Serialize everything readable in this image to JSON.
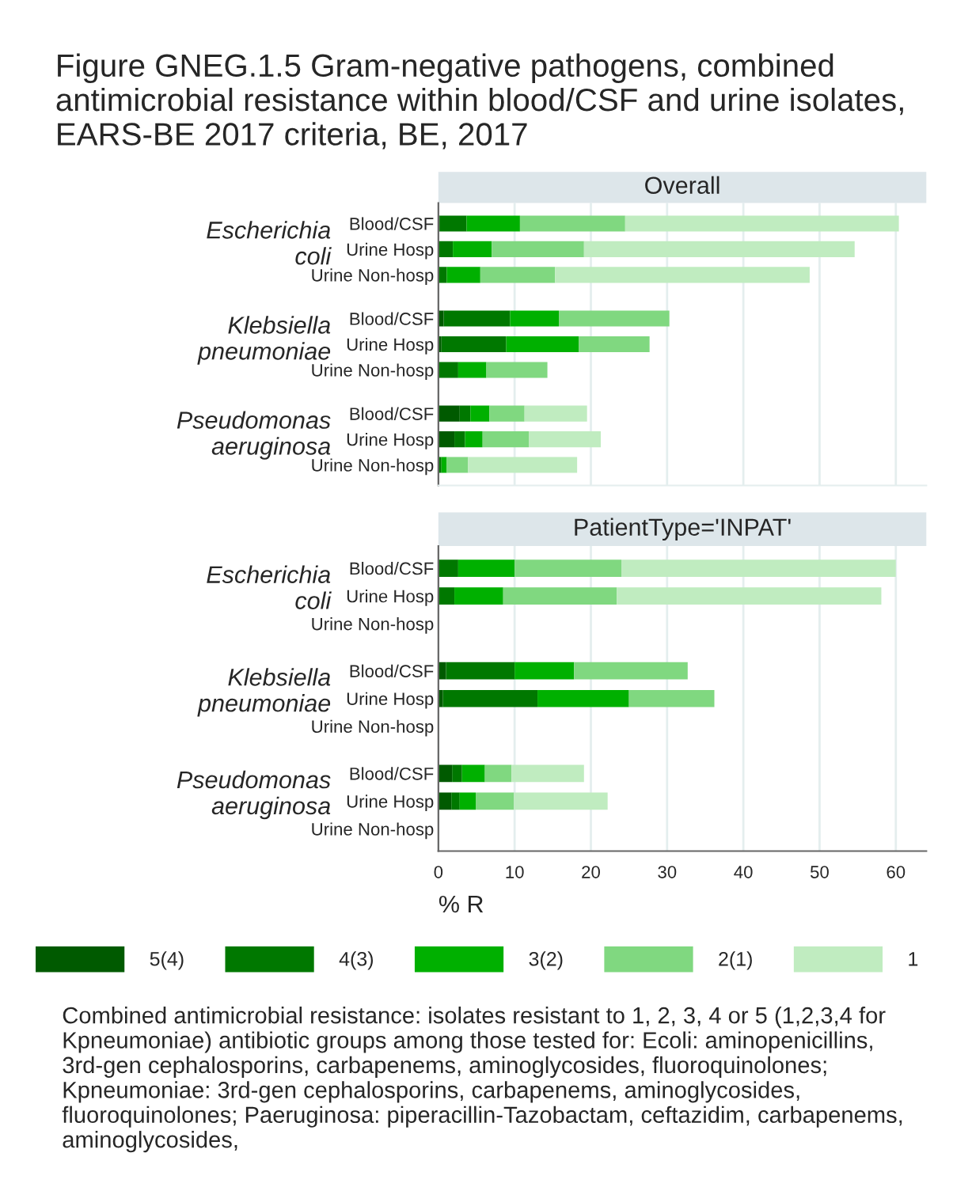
{
  "chart_data": [
    {
      "type": "bar",
      "orientation": "horizontal",
      "stacked": true,
      "title": "Figure GNEG.1.5 Gram-negative pathogens, combined antimicrobial resistance within blood/CSF and urine isolates, EARS-BE 2017 criteria, BE, 2017",
      "subtitle": "Overall",
      "categories": [
        "Blood/CSF",
        "Urine Hosp",
        "Urine Non-hosp",
        "Blood/CSF",
        "Urine Hosp",
        "Urine Non-hosp",
        "Blood/CSF",
        "Urine Hosp",
        "Urine Non-hosp"
      ],
      "annotations": [
        "Escherichia coli",
        "Klebsiella pneumoniae",
        "Pseudomonas aeruginosa"
      ],
      "series": [
        {
          "name": "5(4)",
          "color": "#005a00",
          "values": [
            0.2,
            0,
            0,
            0.7,
            0.4,
            0,
            2.8,
            2.1,
            0
          ]
        },
        {
          "name": "4(3)",
          "color": "#007800",
          "values": [
            3.5,
            1.9,
            1.1,
            8.7,
            8.5,
            2.6,
            1.4,
            1.4,
            0.4
          ]
        },
        {
          "name": "3(2)",
          "color": "#00b000",
          "values": [
            7.0,
            5.1,
            4.4,
            6.4,
            9.5,
            3.7,
            2.5,
            2.3,
            0.7
          ]
        },
        {
          "name": "2(1)",
          "color": "#80d880",
          "values": [
            13.8,
            12.1,
            9.8,
            14.5,
            9.3,
            8.0,
            4.6,
            6.1,
            2.8
          ]
        },
        {
          "name": "1",
          "color": "#c0ecc0",
          "values": [
            35.9,
            35.5,
            33.4,
            0,
            0,
            0,
            8.2,
            9.4,
            14.3
          ]
        }
      ],
      "xlim": [
        0,
        64
      ],
      "xticks": [
        0,
        10,
        20,
        30,
        40,
        50,
        60
      ],
      "grid": "x",
      "tick_labels": "y",
      "legend": "bottom"
    },
    {
      "type": "bar",
      "orientation": "horizontal",
      "stacked": true,
      "subtitle": "PatientType='INPAT'",
      "xlabel": "% R",
      "categories": [
        "Blood/CSF",
        "Urine Hosp",
        "Urine Non-hosp",
        "Blood/CSF",
        "Urine Hosp",
        "Urine Non-hosp",
        "Blood/CSF",
        "Urine Hosp",
        "Urine Non-hosp"
      ],
      "annotations": [
        "Escherichia coli",
        "Klebsiella pneumoniae",
        "Pseudomonas aeruginosa",
        "Combined antimicrobial resistance: isolates resistant to 1, 2, 3, 4 or 5 (1,2,3,4 for Kpneumoniae) antibiotic groups among those tested for: Ecoli: aminopenicillins, 3rd-gen cephalosporins, carbapenems, aminoglycosides, fluoroquinolones; Kpneumoniae: 3rd-gen cephalosporins, carbapenems, aminoglycosides, fluoroquinolones; Paeruginosa: piperacillin-Tazobactam, ceftazidim, carbapenems, aminoglycosides,"
      ],
      "series": [
        {
          "color": "#005a00",
          "values": [
            0,
            0,
            null,
            1.0,
            0.6,
            null,
            1.8,
            1.7,
            null
          ]
        },
        {
          "color": "#007800",
          "values": [
            2.6,
            2.1,
            null,
            9.0,
            12.4,
            null,
            1.3,
            1.1,
            null
          ]
        },
        {
          "color": "#00b000",
          "values": [
            7.4,
            6.4,
            null,
            7.8,
            12.0,
            null,
            3.0,
            2.1,
            null
          ]
        },
        {
          "color": "#80d880",
          "values": [
            14.0,
            14.9,
            null,
            14.9,
            11.2,
            null,
            3.5,
            5.0,
            null
          ]
        },
        {
          "color": "#c0ecc0",
          "values": [
            36.0,
            34.7,
            null,
            0,
            0,
            null,
            9.5,
            12.3,
            null
          ]
        }
      ],
      "xlim": [
        0,
        64
      ],
      "xticks": [
        0,
        10,
        20,
        30,
        40,
        50,
        60
      ],
      "grid": "x"
    }
  ]
}
